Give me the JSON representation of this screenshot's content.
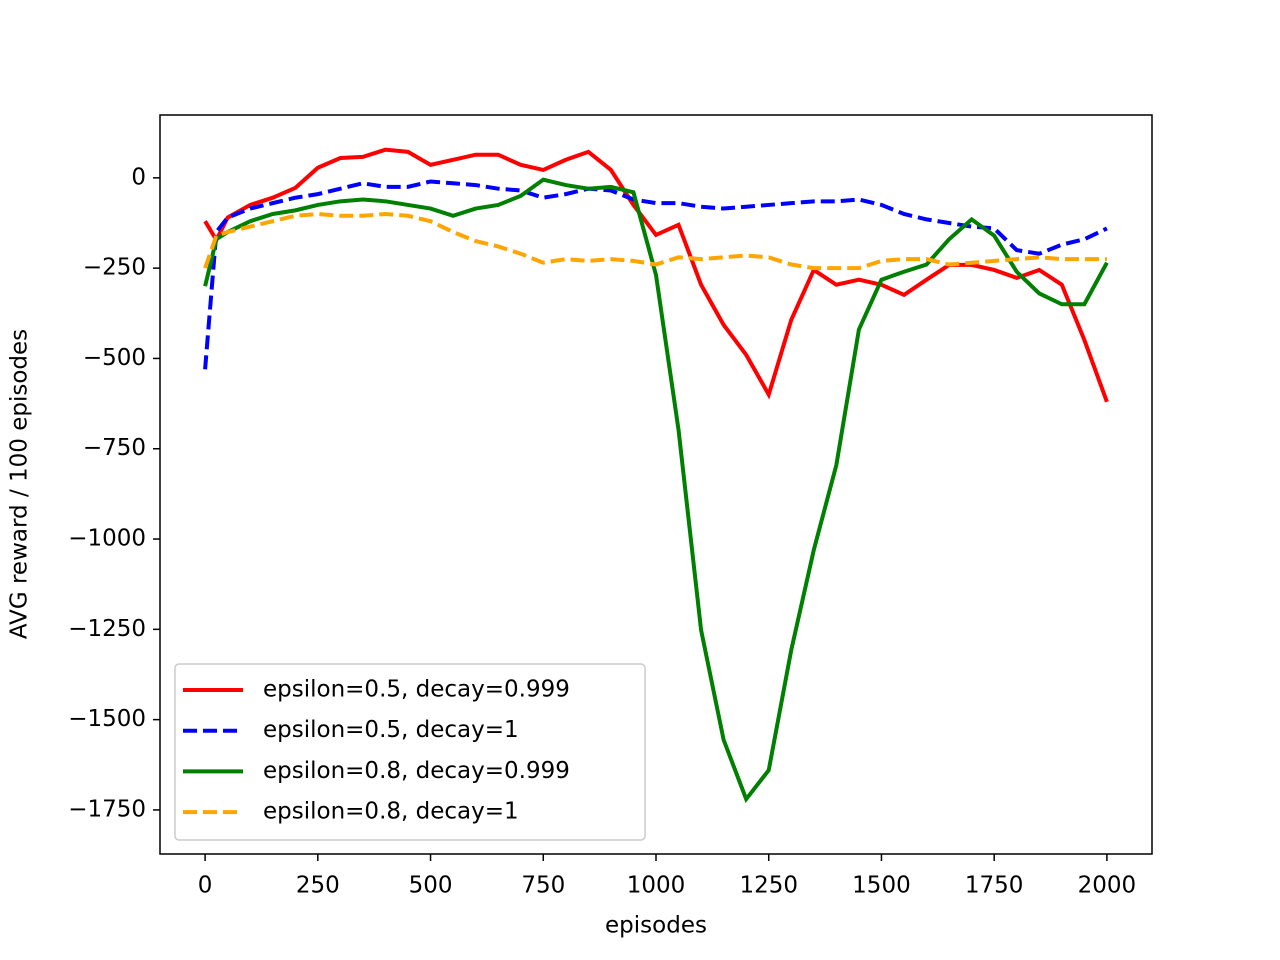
{
  "chart_data": {
    "type": "line",
    "xlabel": "episodes",
    "ylabel": "AVG reward / 100 episodes",
    "x": [
      0,
      25,
      50,
      100,
      150,
      200,
      250,
      300,
      350,
      400,
      450,
      500,
      550,
      600,
      650,
      700,
      750,
      800,
      850,
      900,
      950,
      1000,
      1050,
      1100,
      1150,
      1200,
      1250,
      1300,
      1350,
      1400,
      1450,
      1500,
      1550,
      1600,
      1650,
      1700,
      1750,
      1800,
      1850,
      1900,
      1950,
      2000
    ],
    "series": [
      {
        "name": "epsilon=0.5, decay=0.999",
        "color": "#ff0000",
        "style": "solid",
        "values": [
          -120,
          -172,
          -110,
          -75,
          -55,
          -28,
          28,
          55,
          58,
          78,
          72,
          36,
          50,
          64,
          64,
          36,
          22,
          50,
          72,
          22,
          -75,
          -158,
          -130,
          -296,
          -407,
          -490,
          -600,
          -393,
          -255,
          -296,
          -282,
          -296,
          -324,
          -282,
          -241,
          -241,
          -255,
          -277,
          -255,
          -296,
          -449,
          -620
        ]
      },
      {
        "name": "epsilon=0.5, decay=1",
        "color": "#0000ff",
        "style": "dashed",
        "values": [
          -530,
          -150,
          -110,
          -85,
          -70,
          -55,
          -45,
          -30,
          -15,
          -25,
          -25,
          -10,
          -15,
          -20,
          -30,
          -35,
          -55,
          -45,
          -30,
          -35,
          -60,
          -70,
          -70,
          -80,
          -85,
          -80,
          -75,
          -70,
          -65,
          -65,
          -60,
          -75,
          -100,
          -115,
          -125,
          -135,
          -140,
          -200,
          -210,
          -185,
          -170,
          -140
        ]
      },
      {
        "name": "epsilon=0.8, decay=0.999",
        "color": "#008000",
        "style": "solid",
        "values": [
          -300,
          -170,
          -150,
          -120,
          -100,
          -90,
          -75,
          -65,
          -60,
          -65,
          -75,
          -85,
          -105,
          -85,
          -75,
          -50,
          -5,
          -20,
          -30,
          -25,
          -40,
          -269,
          -698,
          -1252,
          -1556,
          -1720,
          -1640,
          -1307,
          -1030,
          -795,
          -420,
          -282,
          -260,
          -240,
          -170,
          -115,
          -160,
          -260,
          -320,
          -350,
          -350,
          -235
        ]
      },
      {
        "name": "epsilon=0.8, decay=1",
        "color": "#ffa500",
        "style": "dashed",
        "values": [
          -250,
          -160,
          -150,
          -135,
          -120,
          -105,
          -100,
          -105,
          -105,
          -100,
          -105,
          -120,
          -150,
          -175,
          -190,
          -210,
          -235,
          -225,
          -230,
          -225,
          -230,
          -240,
          -220,
          -225,
          -220,
          -215,
          -220,
          -240,
          -250,
          -250,
          -250,
          -230,
          -225,
          -225,
          -240,
          -235,
          -230,
          -225,
          -220,
          -225,
          -225,
          -225
        ]
      }
    ],
    "xlim": [
      -100,
      2100
    ],
    "ylim": [
      -1872,
      174
    ],
    "xticks": [
      0,
      250,
      500,
      750,
      1000,
      1250,
      1500,
      1750,
      2000
    ],
    "yticks": [
      {
        "value": -1750,
        "label": "−1750"
      },
      {
        "value": -1500,
        "label": "−1500"
      },
      {
        "value": -1250,
        "label": "−1250"
      },
      {
        "value": -1000,
        "label": "−1000"
      },
      {
        "value": -750,
        "label": "−750"
      },
      {
        "value": -500,
        "label": "−500"
      },
      {
        "value": -250,
        "label": "−250"
      },
      0
    ],
    "legend": "lower left",
    "grid": false
  }
}
